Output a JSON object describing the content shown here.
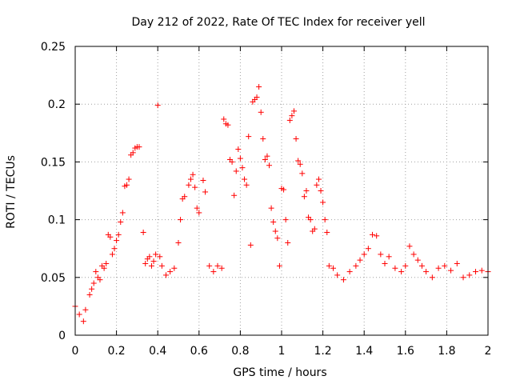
{
  "chart_data": {
    "type": "scatter",
    "title": "Day 212 of 2022, Rate Of TEC Index for receiver yell",
    "xlabel": "GPS time / hours",
    "ylabel": "ROTI / TECUs",
    "xlim": [
      0,
      2
    ],
    "ylim": [
      0,
      0.25
    ],
    "xticks": [
      "0",
      "0.2",
      "0.4",
      "0.6",
      "0.8",
      "1",
      "1.2",
      "1.4",
      "1.6",
      "1.8",
      "2"
    ],
    "yticks": [
      "0",
      "0.05",
      "0.1",
      "0.15",
      "0.2",
      "0.25"
    ],
    "grid": true,
    "marker": "+",
    "color": "#ff0000",
    "series": [
      {
        "name": "ROTI",
        "points": [
          [
            0.0,
            0.025
          ],
          [
            0.02,
            0.018
          ],
          [
            0.04,
            0.012
          ],
          [
            0.05,
            0.022
          ],
          [
            0.07,
            0.035
          ],
          [
            0.08,
            0.04
          ],
          [
            0.09,
            0.045
          ],
          [
            0.1,
            0.055
          ],
          [
            0.11,
            0.05
          ],
          [
            0.12,
            0.048
          ],
          [
            0.13,
            0.06
          ],
          [
            0.14,
            0.058
          ],
          [
            0.15,
            0.062
          ],
          [
            0.16,
            0.087
          ],
          [
            0.17,
            0.085
          ],
          [
            0.18,
            0.07
          ],
          [
            0.19,
            0.075
          ],
          [
            0.2,
            0.082
          ],
          [
            0.21,
            0.087
          ],
          [
            0.22,
            0.098
          ],
          [
            0.23,
            0.106
          ],
          [
            0.24,
            0.129
          ],
          [
            0.25,
            0.13
          ],
          [
            0.26,
            0.135
          ],
          [
            0.27,
            0.156
          ],
          [
            0.28,
            0.158
          ],
          [
            0.29,
            0.162
          ],
          [
            0.3,
            0.163
          ],
          [
            0.31,
            0.163
          ],
          [
            0.33,
            0.089
          ],
          [
            0.34,
            0.062
          ],
          [
            0.35,
            0.066
          ],
          [
            0.36,
            0.068
          ],
          [
            0.37,
            0.06
          ],
          [
            0.38,
            0.064
          ],
          [
            0.39,
            0.07
          ],
          [
            0.4,
            0.199
          ],
          [
            0.41,
            0.068
          ],
          [
            0.42,
            0.06
          ],
          [
            0.44,
            0.052
          ],
          [
            0.46,
            0.055
          ],
          [
            0.48,
            0.058
          ],
          [
            0.5,
            0.08
          ],
          [
            0.51,
            0.1
          ],
          [
            0.52,
            0.118
          ],
          [
            0.53,
            0.12
          ],
          [
            0.55,
            0.13
          ],
          [
            0.56,
            0.135
          ],
          [
            0.57,
            0.139
          ],
          [
            0.58,
            0.128
          ],
          [
            0.59,
            0.11
          ],
          [
            0.6,
            0.106
          ],
          [
            0.62,
            0.134
          ],
          [
            0.63,
            0.124
          ],
          [
            0.65,
            0.06
          ],
          [
            0.67,
            0.055
          ],
          [
            0.69,
            0.06
          ],
          [
            0.71,
            0.058
          ],
          [
            0.72,
            0.187
          ],
          [
            0.73,
            0.183
          ],
          [
            0.74,
            0.182
          ],
          [
            0.75,
            0.152
          ],
          [
            0.76,
            0.15
          ],
          [
            0.77,
            0.121
          ],
          [
            0.78,
            0.142
          ],
          [
            0.79,
            0.161
          ],
          [
            0.8,
            0.153
          ],
          [
            0.81,
            0.145
          ],
          [
            0.82,
            0.135
          ],
          [
            0.83,
            0.13
          ],
          [
            0.84,
            0.172
          ],
          [
            0.85,
            0.078
          ],
          [
            0.86,
            0.202
          ],
          [
            0.87,
            0.204
          ],
          [
            0.88,
            0.206
          ],
          [
            0.89,
            0.215
          ],
          [
            0.9,
            0.193
          ],
          [
            0.91,
            0.17
          ],
          [
            0.92,
            0.152
          ],
          [
            0.93,
            0.155
          ],
          [
            0.94,
            0.147
          ],
          [
            0.95,
            0.11
          ],
          [
            0.96,
            0.098
          ],
          [
            0.97,
            0.09
          ],
          [
            0.98,
            0.084
          ],
          [
            0.99,
            0.06
          ],
          [
            1.0,
            0.127
          ],
          [
            1.01,
            0.126
          ],
          [
            1.02,
            0.1
          ],
          [
            1.03,
            0.08
          ],
          [
            1.04,
            0.186
          ],
          [
            1.05,
            0.19
          ],
          [
            1.06,
            0.194
          ],
          [
            1.07,
            0.17
          ],
          [
            1.08,
            0.151
          ],
          [
            1.09,
            0.148
          ],
          [
            1.1,
            0.14
          ],
          [
            1.11,
            0.12
          ],
          [
            1.12,
            0.125
          ],
          [
            1.13,
            0.102
          ],
          [
            1.14,
            0.1
          ],
          [
            1.15,
            0.09
          ],
          [
            1.16,
            0.092
          ],
          [
            1.17,
            0.13
          ],
          [
            1.18,
            0.135
          ],
          [
            1.19,
            0.125
          ],
          [
            1.2,
            0.115
          ],
          [
            1.21,
            0.1
          ],
          [
            1.22,
            0.089
          ],
          [
            1.23,
            0.06
          ],
          [
            1.25,
            0.058
          ],
          [
            1.27,
            0.052
          ],
          [
            1.3,
            0.048
          ],
          [
            1.33,
            0.055
          ],
          [
            1.36,
            0.06
          ],
          [
            1.38,
            0.065
          ],
          [
            1.4,
            0.07
          ],
          [
            1.42,
            0.075
          ],
          [
            1.44,
            0.087
          ],
          [
            1.46,
            0.086
          ],
          [
            1.48,
            0.07
          ],
          [
            1.5,
            0.062
          ],
          [
            1.52,
            0.068
          ],
          [
            1.55,
            0.058
          ],
          [
            1.58,
            0.055
          ],
          [
            1.6,
            0.06
          ],
          [
            1.62,
            0.077
          ],
          [
            1.64,
            0.07
          ],
          [
            1.66,
            0.065
          ],
          [
            1.68,
            0.06
          ],
          [
            1.7,
            0.055
          ],
          [
            1.73,
            0.05
          ],
          [
            1.76,
            0.058
          ],
          [
            1.79,
            0.06
          ],
          [
            1.82,
            0.056
          ],
          [
            1.85,
            0.062
          ],
          [
            1.88,
            0.05
          ],
          [
            1.91,
            0.052
          ],
          [
            1.94,
            0.055
          ],
          [
            1.97,
            0.056
          ],
          [
            2.0,
            0.055
          ]
        ]
      }
    ]
  }
}
